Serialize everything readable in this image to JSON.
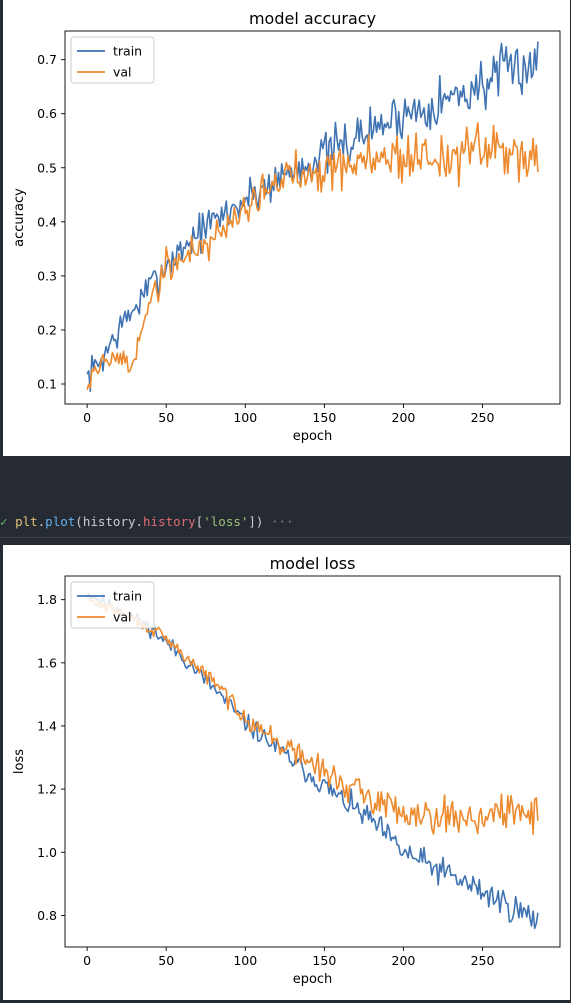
{
  "code": {
    "check": "✓",
    "tokens": [
      {
        "cls": "tok-var",
        "text": "plt"
      },
      {
        "cls": "tok-punc",
        "text": "."
      },
      {
        "cls": "tok-fn",
        "text": "plot"
      },
      {
        "cls": "tok-punc",
        "text": "("
      },
      {
        "cls": "tok-punc",
        "text": "history"
      },
      {
        "cls": "tok-punc",
        "text": "."
      },
      {
        "cls": "tok-attr",
        "text": "history"
      },
      {
        "cls": "tok-punc",
        "text": "["
      },
      {
        "cls": "tok-str",
        "text": "'loss'"
      },
      {
        "cls": "tok-punc",
        "text": "])"
      }
    ],
    "ellipsis": "···"
  },
  "colors": {
    "train": "#3f73b2",
    "val": "#ee8a2e"
  },
  "chart_data": [
    {
      "type": "line",
      "title": "model accuracy",
      "xlabel": "epoch",
      "ylabel": "accuracy",
      "xlim": [
        -14,
        299
      ],
      "ylim": [
        0.063,
        0.753
      ],
      "xticks": [
        0,
        50,
        100,
        150,
        200,
        250
      ],
      "yticks": [
        0.1,
        0.2,
        0.3,
        0.4,
        0.5,
        0.6,
        0.7
      ],
      "ytick_labels": [
        "0.1",
        "0.2",
        "0.3",
        "0.4",
        "0.5",
        "0.6",
        "0.7"
      ],
      "legend": "upper left",
      "series": [
        {
          "name": "train",
          "color_key": "train",
          "seed": 7,
          "noise": 0.022,
          "noise_growth": 0.6,
          "anchors": [
            [
              0,
              0.11
            ],
            [
              10,
              0.15
            ],
            [
              20,
              0.2
            ],
            [
              30,
              0.24
            ],
            [
              40,
              0.28
            ],
            [
              50,
              0.32
            ],
            [
              60,
              0.35
            ],
            [
              70,
              0.38
            ],
            [
              80,
              0.4
            ],
            [
              90,
              0.42
            ],
            [
              100,
              0.44
            ],
            [
              120,
              0.48
            ],
            [
              140,
              0.51
            ],
            [
              160,
              0.54
            ],
            [
              180,
              0.57
            ],
            [
              200,
              0.6
            ],
            [
              220,
              0.62
            ],
            [
              240,
              0.64
            ],
            [
              260,
              0.67
            ],
            [
              285,
              0.7
            ]
          ]
        },
        {
          "name": "val",
          "color_key": "val",
          "seed": 19,
          "noise": 0.018,
          "noise_growth": 1.2,
          "anchors": [
            [
              0,
              0.1
            ],
            [
              5,
              0.13
            ],
            [
              12,
              0.14
            ],
            [
              20,
              0.15
            ],
            [
              28,
              0.13
            ],
            [
              30,
              0.14
            ],
            [
              35,
              0.22
            ],
            [
              40,
              0.25
            ],
            [
              45,
              0.28
            ],
            [
              50,
              0.32
            ],
            [
              60,
              0.33
            ],
            [
              70,
              0.35
            ],
            [
              80,
              0.37
            ],
            [
              90,
              0.4
            ],
            [
              100,
              0.43
            ],
            [
              110,
              0.45
            ],
            [
              120,
              0.47
            ],
            [
              130,
              0.49
            ],
            [
              140,
              0.5
            ],
            [
              150,
              0.5
            ],
            [
              170,
              0.51
            ],
            [
              190,
              0.52
            ],
            [
              210,
              0.52
            ],
            [
              230,
              0.52
            ],
            [
              250,
              0.53
            ],
            [
              270,
              0.53
            ],
            [
              285,
              0.53
            ]
          ]
        }
      ]
    },
    {
      "type": "line",
      "title": "model loss",
      "xlabel": "epoch",
      "ylabel": "loss",
      "xlim": [
        -14,
        299
      ],
      "ylim": [
        0.7,
        1.875
      ],
      "xticks": [
        0,
        50,
        100,
        150,
        200,
        250
      ],
      "yticks": [
        0.8,
        1.0,
        1.2,
        1.4,
        1.6,
        1.8
      ],
      "ytick_labels": [
        "0.8",
        "1.0",
        "1.2",
        "1.4",
        "1.6",
        "1.8"
      ],
      "legend": "upper left",
      "series": [
        {
          "name": "train",
          "color_key": "train",
          "seed": 11,
          "noise": 0.014,
          "noise_growth": 1.6,
          "anchors": [
            [
              0,
              1.82
            ],
            [
              20,
              1.77
            ],
            [
              40,
              1.71
            ],
            [
              60,
              1.62
            ],
            [
              80,
              1.52
            ],
            [
              100,
              1.41
            ],
            [
              120,
              1.33
            ],
            [
              140,
              1.25
            ],
            [
              160,
              1.17
            ],
            [
              180,
              1.1
            ],
            [
              200,
              1.0
            ],
            [
              220,
              0.95
            ],
            [
              240,
              0.9
            ],
            [
              260,
              0.85
            ],
            [
              285,
              0.78
            ]
          ]
        },
        {
          "name": "val",
          "color_key": "val",
          "seed": 29,
          "noise": 0.01,
          "noise_growth": 3.5,
          "anchors": [
            [
              0,
              1.8
            ],
            [
              20,
              1.76
            ],
            [
              40,
              1.71
            ],
            [
              60,
              1.63
            ],
            [
              80,
              1.54
            ],
            [
              100,
              1.43
            ],
            [
              120,
              1.35
            ],
            [
              140,
              1.29
            ],
            [
              160,
              1.22
            ],
            [
              180,
              1.17
            ],
            [
              200,
              1.13
            ],
            [
              220,
              1.12
            ],
            [
              240,
              1.11
            ],
            [
              260,
              1.12
            ],
            [
              285,
              1.13
            ]
          ]
        }
      ]
    }
  ]
}
